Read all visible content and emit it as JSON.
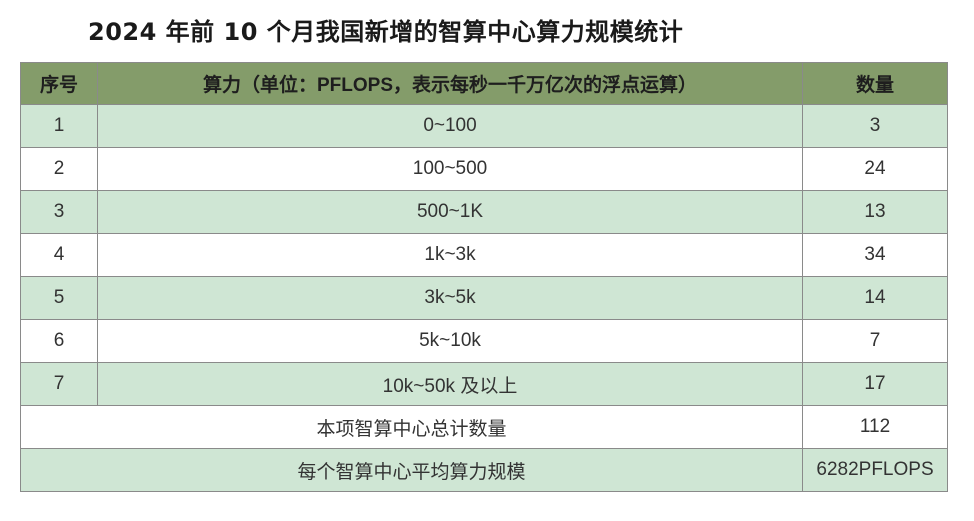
{
  "title": "2024 年前 10 个月我国新增的智算中心算力规模统计",
  "table": {
    "headers": {
      "index": "序号",
      "capacity": "算力（单位：PFLOPS，表示每秒一千万亿次的浮点运算）",
      "count": "数量"
    },
    "rows": [
      {
        "index": "1",
        "capacity": "0~100",
        "count": "3"
      },
      {
        "index": "2",
        "capacity": "100~500",
        "count": "24"
      },
      {
        "index": "3",
        "capacity": "500~1K",
        "count": "13"
      },
      {
        "index": "4",
        "capacity": "1k~3k",
        "count": "34"
      },
      {
        "index": "5",
        "capacity": "3k~5k",
        "count": "14"
      },
      {
        "index": "6",
        "capacity": "5k~10k",
        "count": "7"
      },
      {
        "index": "7",
        "capacity": "10k~50k 及以上",
        "count": "17"
      }
    ],
    "total": {
      "label": "本项智算中心总计数量",
      "value": "112"
    },
    "average": {
      "label": "每个智算中心平均算力规模",
      "value": "6282PFLOPS"
    }
  },
  "colors": {
    "header_bg": "#849c6a",
    "row_green": "#cfe6d4",
    "row_white": "#ffffff",
    "border": "#8a8a8a"
  }
}
